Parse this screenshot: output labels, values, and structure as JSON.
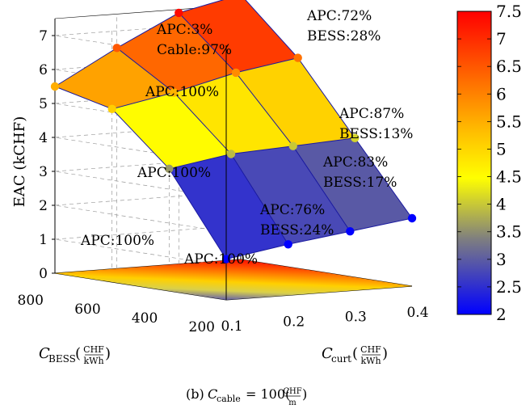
{
  "chart_data": {
    "type": "surface",
    "xlabel": "C_curt (CHF/kWh)",
    "ylabel": "C_BESS (CHF/kWh)",
    "zlabel": "EAC (kCHF)",
    "caption": "(b) C_cable = 100(CHF/m)",
    "x": [
      0.1,
      0.2,
      0.3,
      0.4
    ],
    "y": [
      200,
      400,
      600,
      800
    ],
    "xlim": [
      0.1,
      0.4
    ],
    "ylim": [
      200,
      800
    ],
    "zlim": [
      0,
      7.5
    ],
    "x_ticks": [
      "0.1",
      "0.2",
      "0.3",
      "0.4"
    ],
    "y_ticks": [
      "200",
      "400",
      "600",
      "800"
    ],
    "z_ticks": [
      "0",
      "1",
      "2",
      "3",
      "4",
      "5",
      "6",
      "7"
    ],
    "colorbar_ticks": [
      "2",
      "2.5",
      "3",
      "3.5",
      "4",
      "4.5",
      "5",
      "5.5",
      "6",
      "6.5",
      "7",
      "7.5"
    ],
    "colorbar_range": [
      2,
      7.5
    ],
    "grid": true,
    "z": [
      [
        1.2,
        1.5,
        1.75,
        2.0
      ],
      [
        3.6,
        3.9,
        4.0,
        4.1
      ],
      [
        5.1,
        5.45,
        5.9,
        6.2
      ],
      [
        5.5,
        6.5,
        7.4,
        7.8
      ]
    ],
    "annotations": [
      {
        "lines": [
          "APC:100%"
        ]
      },
      {
        "lines": [
          "APC:100%"
        ]
      },
      {
        "lines": [
          "APC:100%"
        ]
      },
      {
        "lines": [
          "APC:100%"
        ]
      },
      {
        "lines": [
          "APC:76%",
          "BESS:24%"
        ]
      },
      {
        "lines": [
          "APC:83%",
          "BESS:17%"
        ]
      },
      {
        "lines": [
          "APC:87%",
          "BESS:13%"
        ]
      },
      {
        "lines": [
          "APC:72%",
          "BESS:28%"
        ]
      },
      {
        "lines": [
          "APC:3%",
          "Cable:97%"
        ]
      }
    ]
  }
}
